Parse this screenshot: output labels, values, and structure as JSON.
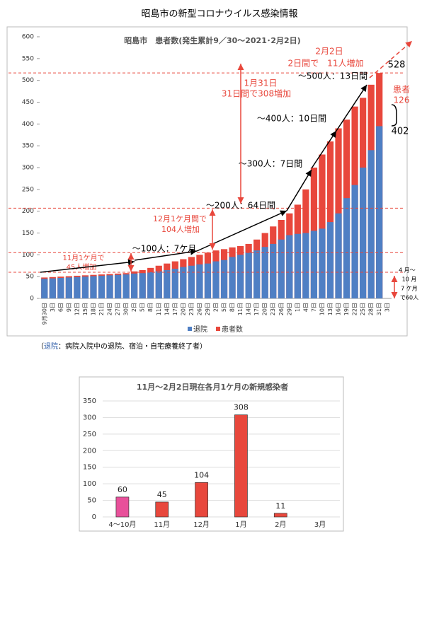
{
  "page_title": "昭島市の新型コロナウイルス感染情報",
  "note_label": "退院",
  "note_text": "：病院入院中の退院、宿泊・自宅療養終了者）",
  "note_open": "（",
  "chart_data": [
    {
      "type": "overlap-bar",
      "title": "昭島市　患者数(発生累計9／30～2021･2月2日)",
      "categories": [
        "9月30日",
        "3日",
        "6日",
        "9日",
        "12日",
        "15日",
        "18日",
        "21日",
        "24日",
        "27日",
        "30日",
        "2日",
        "5日",
        "8日",
        "11日",
        "14日",
        "17日",
        "20日",
        "23日",
        "26日",
        "29日",
        "2日",
        "5日",
        "8日",
        "11日",
        "14日",
        "17日",
        "20日",
        "23日",
        "26日",
        "29日",
        "1日",
        "4日",
        "7日",
        "10日",
        "13日",
        "16日",
        "19日",
        "22日",
        "25日",
        "28日",
        "31日",
        "3日"
      ],
      "series": [
        {
          "name": "患者数",
          "color": "#e8473c",
          "values": [
            48,
            49,
            50,
            51,
            52,
            53,
            54,
            55,
            56,
            57,
            58,
            62,
            65,
            70,
            75,
            80,
            85,
            90,
            95,
            100,
            105,
            110,
            113,
            117,
            120,
            125,
            135,
            150,
            165,
            180,
            195,
            215,
            250,
            300,
            330,
            360,
            390,
            410,
            440,
            460,
            490,
            517,
            null
          ]
        },
        {
          "name": "退院",
          "color": "#4f7fc4",
          "values": [
            45,
            46,
            47,
            48,
            49,
            50,
            51,
            52,
            53,
            54,
            55,
            57,
            58,
            60,
            62,
            65,
            68,
            72,
            75,
            78,
            80,
            85,
            88,
            95,
            100,
            105,
            110,
            118,
            125,
            135,
            145,
            148,
            150,
            155,
            160,
            175,
            195,
            230,
            260,
            300,
            340,
            395,
            null
          ]
        }
      ],
      "ylim": [
        0,
        600
      ],
      "yticks": [
        0,
        50,
        100,
        150,
        200,
        250,
        300,
        350,
        400,
        450,
        500,
        550,
        600
      ],
      "reference_lines": [
        517,
        207,
        105,
        60
      ],
      "annotations": [
        {
          "text": "2月2日",
          "color": "#e8473c"
        },
        {
          "text": "2日間で　11人増加",
          "color": "#e8473c"
        },
        {
          "text": "～500人：13日間",
          "color": "#000000"
        },
        {
          "text": "528",
          "color": "#000000"
        },
        {
          "text": "1月31日",
          "color": "#e8473c"
        },
        {
          "text": "31日間で308増加",
          "color": "#e8473c"
        },
        {
          "text": "患者",
          "color": "#e8473c"
        },
        {
          "text": "126",
          "color": "#e8473c"
        },
        {
          "text": "402",
          "color": "#000000"
        },
        {
          "text": "～400人：10日間",
          "color": "#000000"
        },
        {
          "text": "～300人：7日間",
          "color": "#000000"
        },
        {
          "text": "～200人：64日間",
          "color": "#000000"
        },
        {
          "text": "12月1ケ月間で",
          "color": "#e8473c"
        },
        {
          "text": "104人増加",
          "color": "#e8473c"
        },
        {
          "text": "～100人：7ケ月",
          "color": "#000000"
        },
        {
          "text": "11月1ケ月で",
          "color": "#e8473c"
        },
        {
          "text": "45人増加",
          "color": "#e8473c"
        },
        {
          "text": "4 月～",
          "color": "#000000"
        },
        {
          "text": "10 月",
          "color": "#000000"
        },
        {
          "text": "7 ケ月",
          "color": "#000000"
        },
        {
          "text": "で60人",
          "color": "#000000"
        }
      ]
    },
    {
      "type": "bar",
      "title": "11月～2月2日現在各月1ケ月の新規感染者",
      "categories": [
        "4～10月",
        "11月",
        "12月",
        "1月",
        "2月",
        "3月"
      ],
      "values": [
        60,
        45,
        104,
        308,
        11,
        null
      ],
      "colors": [
        "#e8509a",
        "#e8473c",
        "#e8473c",
        "#e8473c",
        "#e8473c",
        "#e8473c"
      ],
      "ylim": [
        0,
        350
      ],
      "yticks": [
        0,
        50,
        100,
        150,
        200,
        250,
        300,
        350
      ],
      "grid": true
    }
  ]
}
